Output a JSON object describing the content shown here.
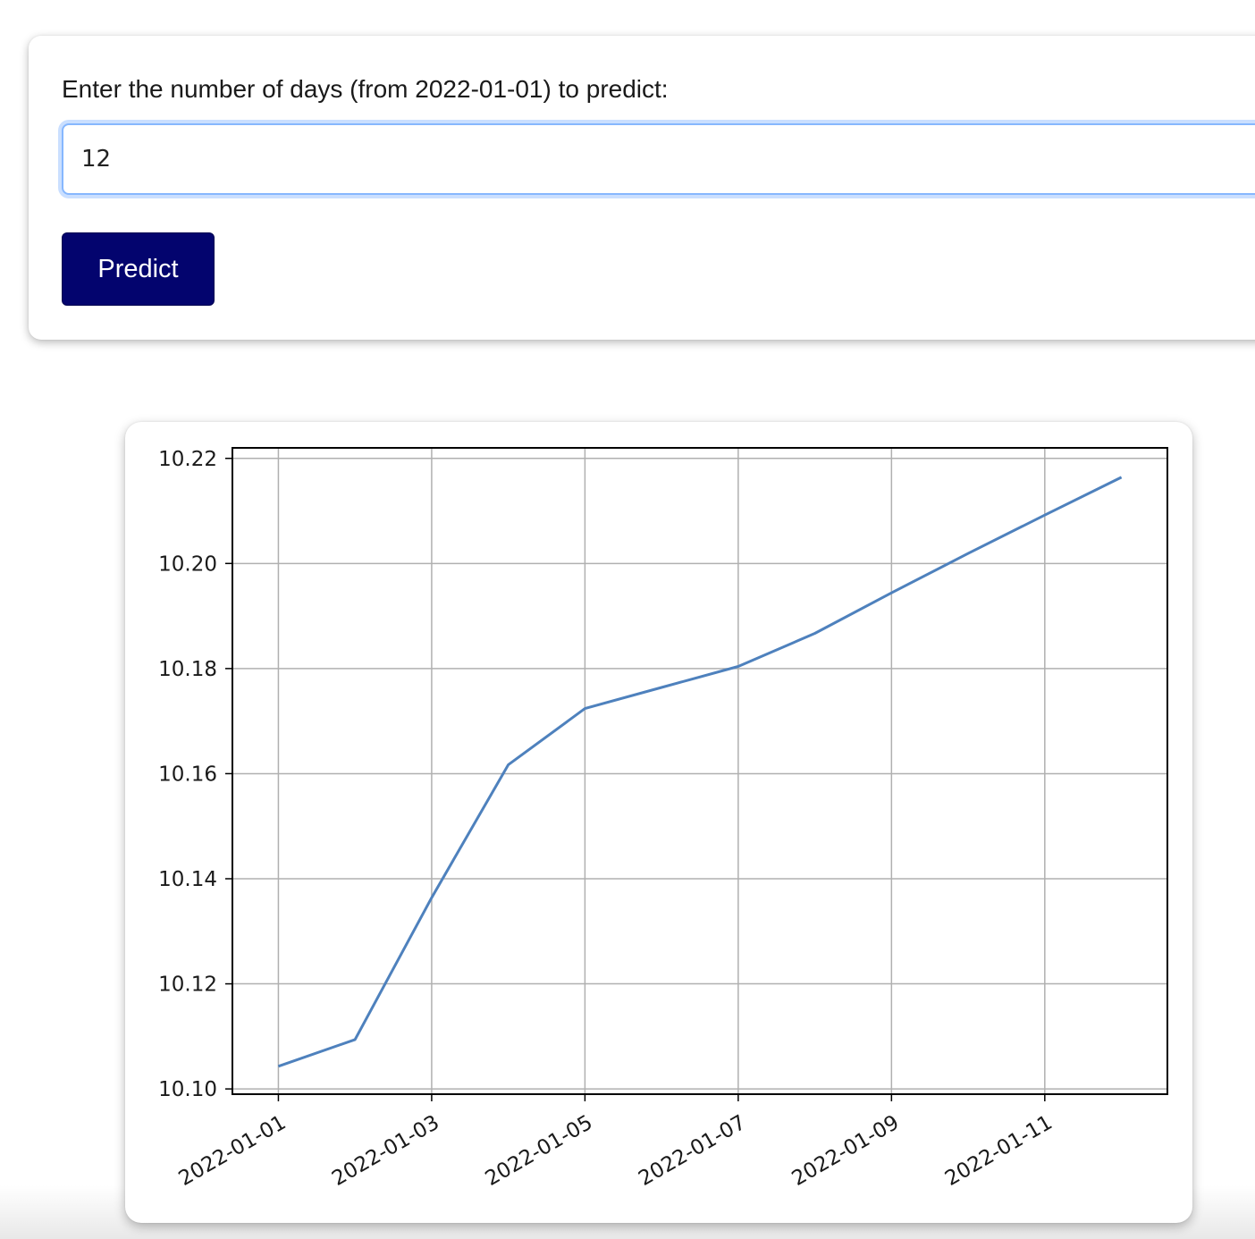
{
  "form": {
    "prompt_label": "Enter the number of days (from 2022-01-01) to predict:",
    "days_value": "12",
    "predict_label": "Predict"
  },
  "chart_data": {
    "type": "line",
    "title": "",
    "xlabel": "",
    "ylabel": "",
    "x": [
      "2022-01-01",
      "2022-01-02",
      "2022-01-03",
      "2022-01-04",
      "2022-01-05",
      "2022-01-06",
      "2022-01-07",
      "2022-01-08",
      "2022-01-09",
      "2022-01-10",
      "2022-01-11",
      "2022-01-12"
    ],
    "series": [
      {
        "values": [
          10.1043,
          10.1094,
          10.1364,
          10.1617,
          10.1724,
          10.1764,
          10.1804,
          10.1867,
          10.1944,
          10.2019,
          10.2092,
          10.2164
        ],
        "color": "#4e81bd"
      }
    ],
    "xticks": [
      "2022-01-01",
      "2022-01-03",
      "2022-01-05",
      "2022-01-07",
      "2022-01-09",
      "2022-01-11"
    ],
    "yticks": [
      "10.10",
      "10.12",
      "10.14",
      "10.16",
      "10.18",
      "10.20",
      "10.22"
    ],
    "xlim": [
      "2021-12-31T09:36",
      "2022-01-12T14:24"
    ],
    "ylim": [
      10.099,
      10.222
    ],
    "grid": true,
    "legend": "none"
  }
}
